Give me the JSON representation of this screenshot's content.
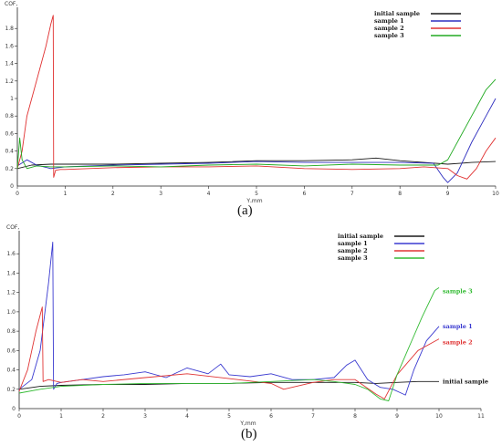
{
  "chart_data": [
    {
      "type": "line",
      "panel_label": "(a)",
      "ylabel": "COF,",
      "xlabel": "Y,mm",
      "xlim": [
        0,
        10
      ],
      "ylim": [
        0,
        2.0
      ],
      "xticks": [
        0,
        1,
        2,
        3,
        4,
        5,
        6,
        7,
        8,
        9,
        10
      ],
      "yticks": [
        0.2,
        0.4,
        0.6,
        0.8,
        1,
        1.2,
        1.4,
        1.6,
        1.8
      ],
      "ytick_labels": [
        "0.2",
        "0.4",
        "0.6",
        "0.8",
        "1",
        "1.2",
        "1.4",
        "1.6",
        "1.8"
      ],
      "legend_position": "top-right",
      "grid": false,
      "series": [
        {
          "name": "initial sample",
          "color": "#1a1a1a",
          "x": [
            0,
            0.3,
            0.7,
            1,
            2,
            3,
            4,
            5,
            6,
            7,
            7.5,
            8,
            8.5,
            9,
            9.5,
            10
          ],
          "y": [
            0.2,
            0.24,
            0.25,
            0.25,
            0.25,
            0.26,
            0.27,
            0.29,
            0.29,
            0.3,
            0.32,
            0.29,
            0.27,
            0.25,
            0.27,
            0.28
          ]
        },
        {
          "name": "sample 1",
          "color": "#2e2ebf",
          "x": [
            0,
            0.2,
            0.4,
            0.7,
            1,
            2,
            3,
            4,
            5,
            6,
            7,
            8,
            8.7,
            8.9,
            9,
            9.2,
            9.5,
            9.8,
            10
          ],
          "y": [
            0.23,
            0.3,
            0.24,
            0.2,
            0.22,
            0.24,
            0.25,
            0.26,
            0.28,
            0.27,
            0.27,
            0.27,
            0.26,
            0.1,
            0.04,
            0.15,
            0.5,
            0.8,
            1.0
          ]
        },
        {
          "name": "sample 2",
          "color": "#e03030",
          "x": [
            0,
            0.1,
            0.2,
            0.4,
            0.6,
            0.7,
            0.75,
            0.76,
            0.8,
            0.9,
            1,
            2,
            3,
            4,
            5,
            6,
            7,
            8,
            8.5,
            9,
            9.2,
            9.4,
            9.6,
            9.8,
            10
          ],
          "y": [
            0.2,
            0.4,
            0.8,
            1.2,
            1.6,
            1.85,
            1.95,
            0.1,
            0.18,
            0.19,
            0.19,
            0.21,
            0.22,
            0.22,
            0.23,
            0.2,
            0.19,
            0.2,
            0.22,
            0.2,
            0.12,
            0.08,
            0.2,
            0.4,
            0.55
          ]
        },
        {
          "name": "sample 3",
          "color": "#22aa22",
          "x": [
            0,
            0.05,
            0.1,
            0.2,
            0.4,
            0.7,
            1,
            2,
            3,
            4,
            5,
            6,
            7,
            8,
            8.8,
            9,
            9.3,
            9.6,
            9.8,
            10
          ],
          "y": [
            0.2,
            0.55,
            0.3,
            0.2,
            0.23,
            0.22,
            0.22,
            0.23,
            0.22,
            0.24,
            0.25,
            0.23,
            0.25,
            0.24,
            0.24,
            0.3,
            0.6,
            0.9,
            1.1,
            1.22
          ]
        }
      ]
    },
    {
      "type": "line",
      "panel_label": "(b)",
      "ylabel": "COF,",
      "xlabel": "Y,mm",
      "xlim": [
        0,
        11
      ],
      "ylim": [
        0,
        1.8
      ],
      "xticks": [
        0,
        1,
        2,
        3,
        4,
        5,
        6,
        7,
        8,
        9,
        10,
        11
      ],
      "yticks": [
        0.2,
        0.4,
        0.6,
        0.8,
        1,
        1.2,
        1.4,
        1.6
      ],
      "ytick_labels": [
        "0.2",
        "0.4",
        "0.6",
        "0.8",
        "1.0",
        "1.2",
        "1.4",
        "1.6"
      ],
      "legend_position": "top-center",
      "grid": false,
      "end_labels": [
        {
          "text": "sample 3",
          "series": 3
        },
        {
          "text": "sample 1",
          "series": 1
        },
        {
          "text": "sample 2",
          "series": 2
        },
        {
          "text": "initial sample",
          "series": 0
        }
      ],
      "series": [
        {
          "name": "initial sample",
          "color": "#1a1a1a",
          "x": [
            0,
            0.5,
            1,
            2,
            3,
            4,
            5,
            6,
            7,
            8,
            8.5,
            9,
            9.5,
            10
          ],
          "y": [
            0.2,
            0.23,
            0.24,
            0.25,
            0.25,
            0.26,
            0.26,
            0.27,
            0.27,
            0.27,
            0.26,
            0.27,
            0.28,
            0.28
          ]
        },
        {
          "name": "sample 1",
          "color": "#3a3ad0",
          "x": [
            0,
            0.3,
            0.5,
            0.7,
            0.8,
            0.82,
            0.9,
            1,
            1.5,
            2,
            2.5,
            3,
            3.5,
            4,
            4.5,
            4.8,
            5,
            5.5,
            6,
            6.5,
            7,
            7.5,
            7.8,
            8,
            8.3,
            8.6,
            8.9,
            9.1,
            9.2,
            9.4,
            9.7,
            10
          ],
          "y": [
            0.2,
            0.3,
            0.6,
            1.3,
            1.72,
            0.2,
            0.26,
            0.27,
            0.3,
            0.33,
            0.35,
            0.38,
            0.32,
            0.42,
            0.36,
            0.46,
            0.35,
            0.33,
            0.36,
            0.3,
            0.3,
            0.32,
            0.45,
            0.5,
            0.3,
            0.22,
            0.2,
            0.16,
            0.14,
            0.4,
            0.7,
            0.85
          ]
        },
        {
          "name": "sample 2",
          "color": "#e03535",
          "x": [
            0,
            0.2,
            0.4,
            0.55,
            0.57,
            0.7,
            1,
            1.5,
            2,
            3,
            4,
            5,
            6,
            6.3,
            7,
            7.5,
            8,
            8.5,
            8.7,
            9,
            9.5,
            10
          ],
          "y": [
            0.18,
            0.4,
            0.8,
            1.05,
            0.28,
            0.3,
            0.27,
            0.3,
            0.28,
            0.32,
            0.36,
            0.31,
            0.26,
            0.2,
            0.27,
            0.3,
            0.3,
            0.15,
            0.1,
            0.35,
            0.6,
            0.72
          ]
        },
        {
          "name": "sample 3",
          "color": "#33bb33",
          "x": [
            0,
            0.5,
            1,
            2,
            3,
            4,
            5,
            6,
            7,
            7.5,
            8,
            8.3,
            8.6,
            8.8,
            9,
            9.3,
            9.6,
            9.9,
            10
          ],
          "y": [
            0.16,
            0.2,
            0.23,
            0.25,
            0.26,
            0.26,
            0.26,
            0.28,
            0.3,
            0.28,
            0.25,
            0.2,
            0.1,
            0.08,
            0.35,
            0.65,
            0.95,
            1.22,
            1.25
          ]
        }
      ]
    }
  ]
}
